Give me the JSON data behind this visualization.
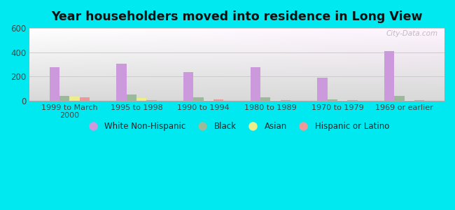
{
  "title": "Year householders moved into residence in Long View",
  "categories": [
    "1999 to March\n2000",
    "1995 to 1998",
    "1990 to 1994",
    "1980 to 1989",
    "1970 to 1979",
    "1969 or earlier"
  ],
  "series": {
    "White Non-Hispanic": [
      278,
      305,
      235,
      275,
      190,
      410
    ],
    "Black": [
      42,
      50,
      30,
      28,
      8,
      42
    ],
    "Asian": [
      32,
      22,
      5,
      5,
      5,
      5
    ],
    "Hispanic or Latino": [
      30,
      5,
      12,
      5,
      5,
      5
    ]
  },
  "colors": {
    "White Non-Hispanic": "#cc99dd",
    "Black": "#99bb99",
    "Asian": "#eeee88",
    "Hispanic or Latino": "#ee9999"
  },
  "ylim": [
    0,
    600
  ],
  "yticks": [
    0,
    200,
    400,
    600
  ],
  "bar_width": 0.15,
  "outer_color": "#00e8f0",
  "watermark": "City-Data.com"
}
